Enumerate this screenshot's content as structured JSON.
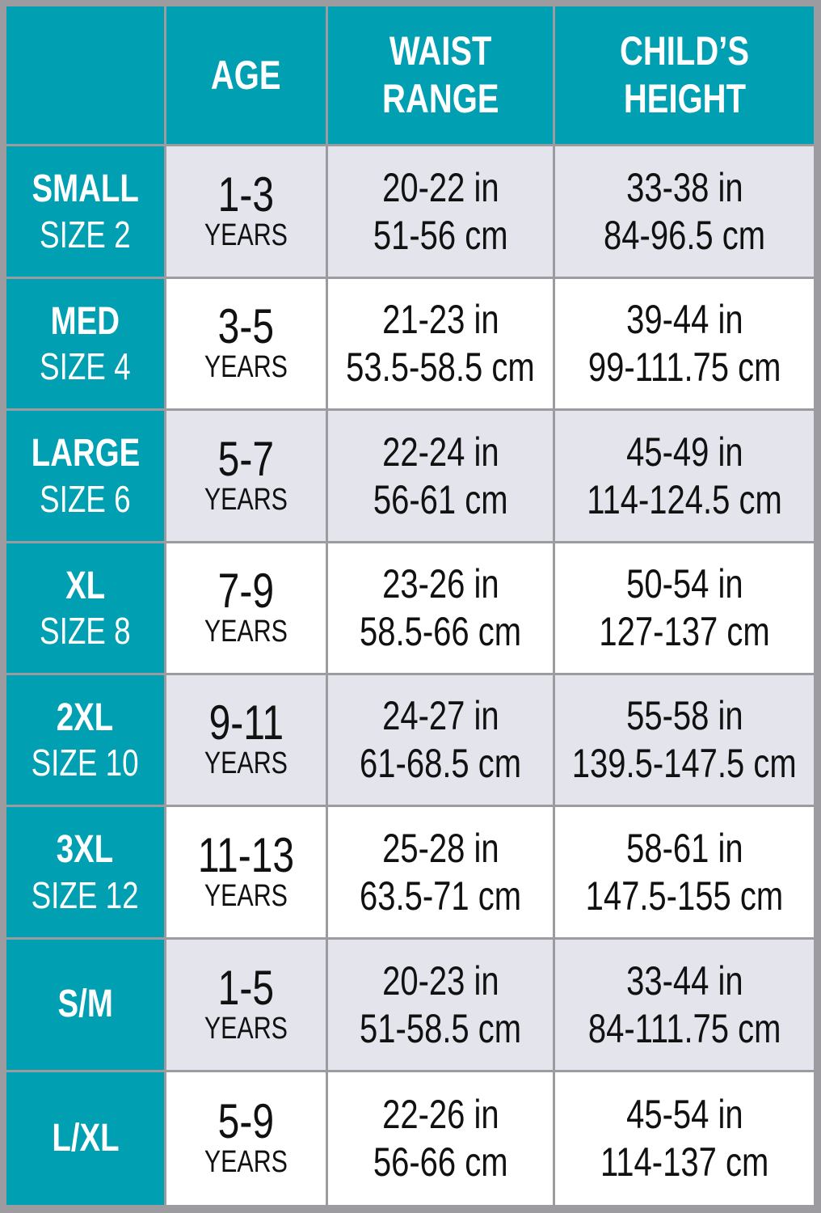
{
  "header": {
    "columns": [
      [
        "AGE"
      ],
      [
        "WAIST",
        "RANGE"
      ],
      [
        "CHILD’S",
        "HEIGHT"
      ]
    ]
  },
  "rows": [
    {
      "size": "SMALL",
      "size_number": "SIZE 2",
      "age": "1-3",
      "age_unit": "YEARS",
      "waist_in": "20-22 in",
      "waist_cm": "51-56 cm",
      "height_in": "33-38 in",
      "height_cm": "84-96.5 cm"
    },
    {
      "size": "MED",
      "size_number": "SIZE 4",
      "age": "3-5",
      "age_unit": "YEARS",
      "waist_in": "21-23 in",
      "waist_cm": "53.5-58.5 cm",
      "height_in": "39-44 in",
      "height_cm": "99-111.75 cm"
    },
    {
      "size": "LARGE",
      "size_number": "SIZE 6",
      "age": "5-7",
      "age_unit": "YEARS",
      "waist_in": "22-24 in",
      "waist_cm": "56-61 cm",
      "height_in": "45-49 in",
      "height_cm": "114-124.5 cm"
    },
    {
      "size": "XL",
      "size_number": "SIZE 8",
      "age": "7-9",
      "age_unit": "YEARS",
      "waist_in": "23-26 in",
      "waist_cm": "58.5-66 cm",
      "height_in": "50-54 in",
      "height_cm": "127-137 cm"
    },
    {
      "size": "2XL",
      "size_number": "SIZE 10",
      "age": "9-11",
      "age_unit": "YEARS",
      "waist_in": "24-27 in",
      "waist_cm": "61-68.5 cm",
      "height_in": "55-58 in",
      "height_cm": "139.5-147.5 cm"
    },
    {
      "size": "3XL",
      "size_number": "SIZE 12",
      "age": "11-13",
      "age_unit": "YEARS",
      "waist_in": "25-28 in",
      "waist_cm": "63.5-71 cm",
      "height_in": "58-61 in",
      "height_cm": "147.5-155 cm"
    },
    {
      "size": "S/M",
      "age": "1-5",
      "age_unit": "YEARS",
      "waist_in": "20-23 in",
      "waist_cm": "51-58.5 cm",
      "height_in": "33-44 in",
      "height_cm": "84-111.75 cm"
    },
    {
      "size": "L/XL",
      "age": "5-9",
      "age_unit": "YEARS",
      "waist_in": "22-26 in",
      "waist_cm": "56-66 cm",
      "height_in": "45-54 in",
      "height_cm": "114-137 cm"
    }
  ]
}
